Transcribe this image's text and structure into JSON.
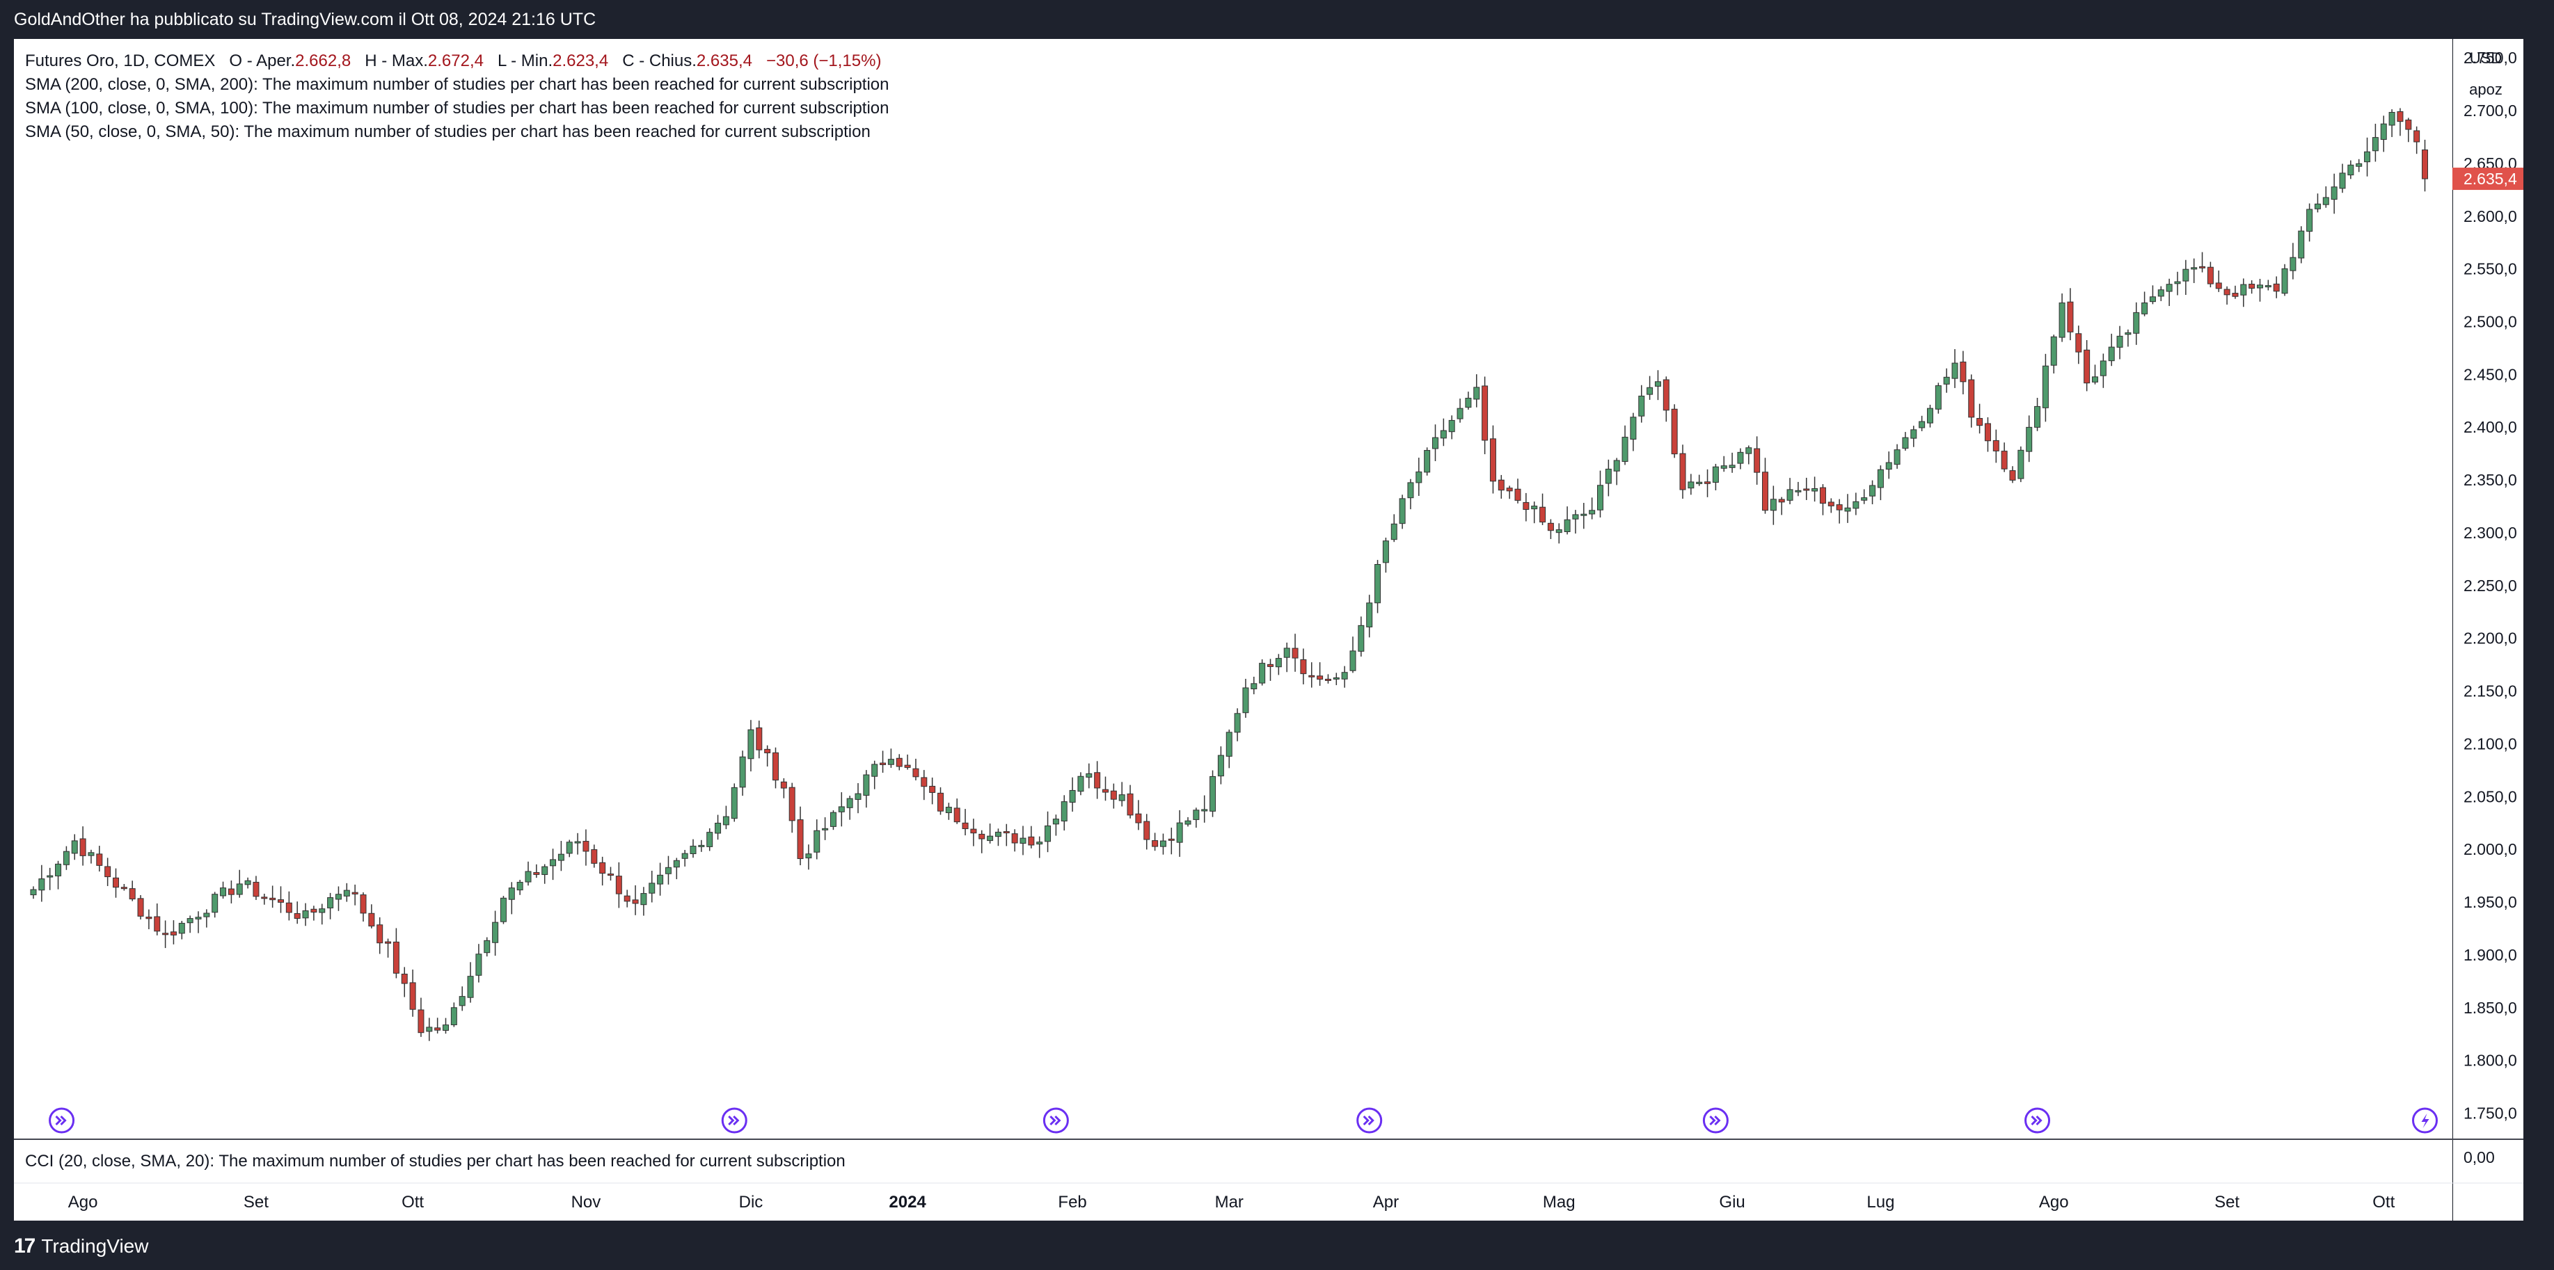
{
  "header": {
    "published_by": "GoldAndOther ha pubblicato su TradingView.com il Ott 08, 2024 21:16 UTC"
  },
  "legend": {
    "symbol": "Futures Oro, 1D, COMEX",
    "open_label": "O - Aper.",
    "open_value": "2.662,8",
    "high_label": "H - Max.",
    "high_value": "2.672,4",
    "low_label": "L - Min.",
    "low_value": "2.623,4",
    "close_label": "C - Chius.",
    "close_value": "2.635,4",
    "change": "−30,6 (−1,15%)",
    "studies": [
      "SMA (200, close, 0, SMA, 200): The maximum number of studies per chart has been reached for current subscription",
      "SMA (100, close, 0, SMA, 100): The maximum number of studies per chart has been reached for current subscription",
      "SMA (50, close, 0, SMA, 50): The maximum number of studies per chart has been reached for current subscription"
    ]
  },
  "price_scale": {
    "currency": "USD",
    "mode": "apoz",
    "last_price": "2.635,4"
  },
  "cci": {
    "label": "CCI (20, close, SMA, 20): The maximum number of studies per chart has been reached for current subscription",
    "axis_value": "0,00"
  },
  "footer": {
    "brand": "TradingView",
    "logo_mark": "17"
  },
  "colors": {
    "up": "#4f9a6c",
    "down": "#c9413a",
    "last_price_bg": "#e0524b",
    "event_marker": "#6a2ff2",
    "frame": "#1e222d"
  },
  "chart_data": {
    "type": "candlestick",
    "title": "Futures Oro, 1D, COMEX",
    "ylim": [
      1720,
      2760
    ],
    "y_ticks": [
      {
        "value": 2750,
        "label": "2.750,0"
      },
      {
        "value": 2700,
        "label": "2.700,0"
      },
      {
        "value": 2650,
        "label": "2.650,0"
      },
      {
        "value": 2600,
        "label": "2.600,0"
      },
      {
        "value": 2550,
        "label": "2.550,0"
      },
      {
        "value": 2500,
        "label": "2.500,0"
      },
      {
        "value": 2450,
        "label": "2.450,0"
      },
      {
        "value": 2400,
        "label": "2.400,0"
      },
      {
        "value": 2350,
        "label": "2.350,0"
      },
      {
        "value": 2300,
        "label": "2.300,0"
      },
      {
        "value": 2250,
        "label": "2.250,0"
      },
      {
        "value": 2200,
        "label": "2.200,0"
      },
      {
        "value": 2150,
        "label": "2.150,0"
      },
      {
        "value": 2100,
        "label": "2.100,0"
      },
      {
        "value": 2050,
        "label": "2.050,0"
      },
      {
        "value": 2000,
        "label": "2.000,0"
      },
      {
        "value": 1950,
        "label": "1.950,0"
      },
      {
        "value": 1900,
        "label": "1.900,0"
      },
      {
        "value": 1850,
        "label": "1.850,0"
      },
      {
        "value": 1800,
        "label": "1.800,0"
      },
      {
        "value": 1750,
        "label": "1.750,0"
      }
    ],
    "x_ticks": [
      {
        "label": "Ago",
        "index": 6,
        "bold": false
      },
      {
        "label": "Set",
        "index": 27,
        "bold": false
      },
      {
        "label": "Ott",
        "index": 46,
        "bold": false
      },
      {
        "label": "Nov",
        "index": 67,
        "bold": false
      },
      {
        "label": "Dic",
        "index": 87,
        "bold": false
      },
      {
        "label": "2024",
        "index": 106,
        "bold": true
      },
      {
        "label": "Feb",
        "index": 126,
        "bold": false
      },
      {
        "label": "Mar",
        "index": 145,
        "bold": false
      },
      {
        "label": "Apr",
        "index": 164,
        "bold": false
      },
      {
        "label": "Mag",
        "index": 185,
        "bold": false
      },
      {
        "label": "Giu",
        "index": 206,
        "bold": false
      },
      {
        "label": "Lug",
        "index": 224,
        "bold": false
      },
      {
        "label": "Ago",
        "index": 245,
        "bold": false
      },
      {
        "label": "Set",
        "index": 266,
        "bold": false
      },
      {
        "label": "Ott",
        "index": 285,
        "bold": false
      }
    ],
    "event_markers": [
      {
        "index": 3,
        "kind": "arrow"
      },
      {
        "index": 85,
        "kind": "arrow"
      },
      {
        "index": 124,
        "kind": "arrow"
      },
      {
        "index": 162,
        "kind": "arrow"
      },
      {
        "index": 204,
        "kind": "arrow"
      },
      {
        "index": 243,
        "kind": "arrow"
      },
      {
        "index": 290,
        "kind": "bolt"
      }
    ],
    "anchors": [
      [
        0,
        1962
      ],
      [
        5,
        2008
      ],
      [
        16,
        1918
      ],
      [
        25,
        1968
      ],
      [
        33,
        1935
      ],
      [
        38,
        1966
      ],
      [
        43,
        1905
      ],
      [
        47,
        1830
      ],
      [
        50,
        1830
      ],
      [
        57,
        1955
      ],
      [
        66,
        2008
      ],
      [
        73,
        1945
      ],
      [
        84,
        2035
      ],
      [
        87,
        2110
      ],
      [
        91,
        2060
      ],
      [
        93,
        1992
      ],
      [
        100,
        2058
      ],
      [
        104,
        2092
      ],
      [
        110,
        2040
      ],
      [
        116,
        2012
      ],
      [
        122,
        2010
      ],
      [
        127,
        2072
      ],
      [
        132,
        2050
      ],
      [
        136,
        2003
      ],
      [
        142,
        2040
      ],
      [
        147,
        2155
      ],
      [
        152,
        2195
      ],
      [
        155,
        2162
      ],
      [
        159,
        2162
      ],
      [
        164,
        2290
      ],
      [
        167,
        2345
      ],
      [
        171,
        2398
      ],
      [
        175,
        2432
      ],
      [
        177,
        2342
      ],
      [
        181,
        2328
      ],
      [
        184,
        2300
      ],
      [
        189,
        2322
      ],
      [
        194,
        2410
      ],
      [
        197,
        2448
      ],
      [
        200,
        2345
      ],
      [
        204,
        2356
      ],
      [
        208,
        2385
      ],
      [
        210,
        2325
      ],
      [
        215,
        2342
      ],
      [
        220,
        2318
      ],
      [
        224,
        2360
      ],
      [
        228,
        2400
      ],
      [
        233,
        2460
      ],
      [
        235,
        2415
      ],
      [
        240,
        2355
      ],
      [
        242,
        2395
      ],
      [
        246,
        2520
      ],
      [
        249,
        2442
      ],
      [
        253,
        2480
      ],
      [
        258,
        2536
      ],
      [
        262,
        2550
      ],
      [
        266,
        2528
      ],
      [
        272,
        2532
      ],
      [
        276,
        2600
      ],
      [
        280,
        2640
      ],
      [
        284,
        2670
      ],
      [
        286,
        2698
      ],
      [
        289,
        2672
      ],
      [
        290,
        2635.4
      ]
    ]
  }
}
